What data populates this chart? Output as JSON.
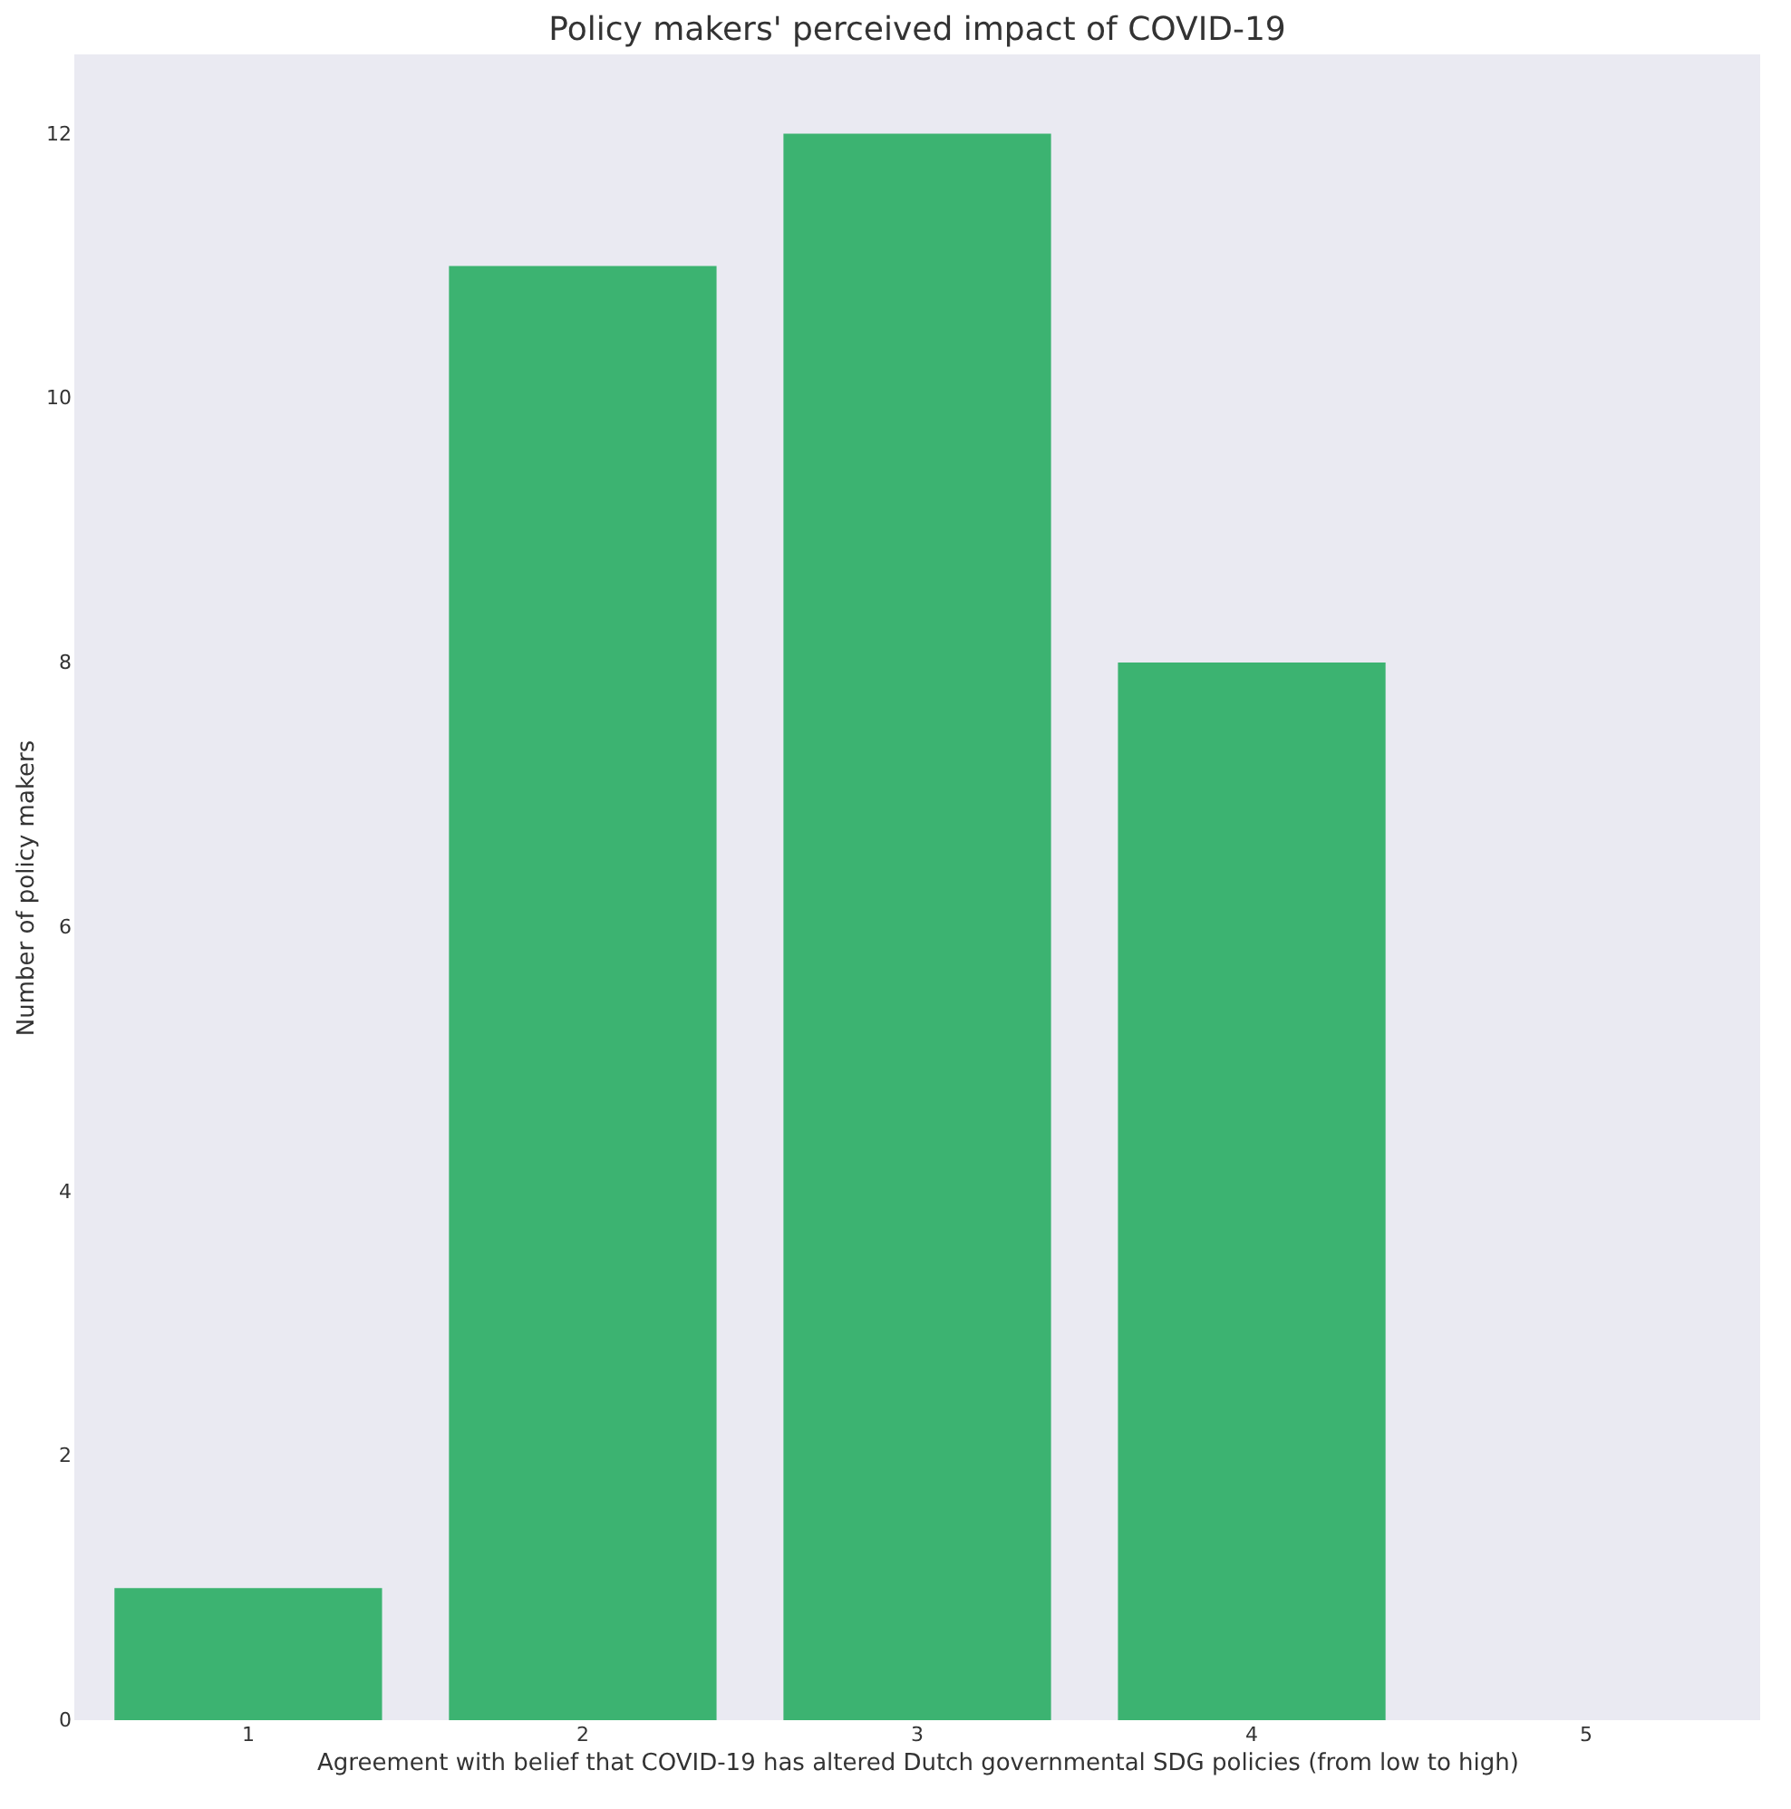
{
  "chart_data": {
    "type": "bar",
    "title": "Policy makers' perceived impact of COVID-19",
    "xlabel": "Agreement with belief that COVID-19 has altered Dutch governmental SDG policies (from low to high)",
    "ylabel": "Number of policy makers",
    "categories": [
      "1",
      "2",
      "3",
      "4",
      "5"
    ],
    "values": [
      1,
      11,
      12,
      8,
      0
    ],
    "color": "#3cb371",
    "ylim": [
      0,
      12.6
    ],
    "yticks": [
      0,
      2,
      4,
      6,
      8,
      10,
      12
    ],
    "grid": false
  }
}
